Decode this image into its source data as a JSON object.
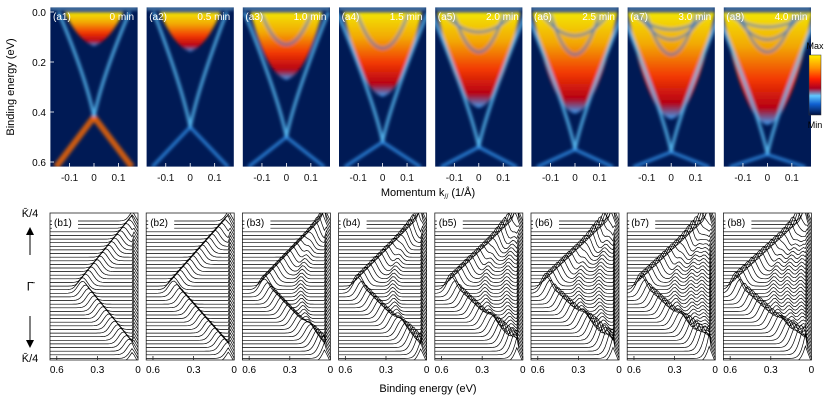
{
  "figure": {
    "top_panels": [
      {
        "label": "(a1)",
        "time": "0 min"
      },
      {
        "label": "(a2)",
        "time": "0.5 min"
      },
      {
        "label": "(a3)",
        "time": "1.0 min"
      },
      {
        "label": "(a4)",
        "time": "1.5 min"
      },
      {
        "label": "(a5)",
        "time": "2.0 min"
      },
      {
        "label": "(a6)",
        "time": "2.5 min"
      },
      {
        "label": "(a7)",
        "time": "3.0 min"
      },
      {
        "label": "(a8)",
        "time": "4.0 min"
      }
    ],
    "bottom_panels": [
      {
        "label": "(b1)"
      },
      {
        "label": "(b2)"
      },
      {
        "label": "(b3)"
      },
      {
        "label": "(b4)"
      },
      {
        "label": "(b5)"
      },
      {
        "label": "(b6)"
      },
      {
        "label": "(b7)"
      },
      {
        "label": "(b8)"
      }
    ],
    "top_y_label": "Binding energy (eV)",
    "top_y_ticks": [
      "0.0",
      "0.2",
      "0.4",
      "0.6"
    ],
    "top_x_label": "Momentum k",
    "top_x_label_sub": "//",
    "top_x_label_unit": " (1/Å)",
    "top_x_ticks": [
      "-0.1",
      "0",
      "0.1"
    ],
    "colorbar": {
      "max_label": "Max",
      "min_label": "Min"
    },
    "bottom_y_top": "K̄/4",
    "bottom_y_mid": "Γ̄",
    "bottom_y_bottom": "K̄/4",
    "bottom_x_label": "Binding energy (eV)",
    "bottom_x_ticks": [
      "0.6",
      "0.3",
      "0"
    ]
  },
  "chart_data": {
    "type": "heatmap",
    "title": "",
    "xlabel": "Momentum k// (1/Å)",
    "ylabel": "Binding energy (eV)",
    "xlim": [
      -0.18,
      0.18
    ],
    "ylim": [
      0.62,
      -0.02
    ],
    "x_ticks": [
      -0.1,
      0,
      0.1
    ],
    "y_ticks": [
      0.0,
      0.2,
      0.4,
      0.6
    ],
    "panels": [
      {
        "label": "(a1)",
        "time_min": 0.0,
        "fill": 0.25,
        "dirac_point_eV": 0.42,
        "subbands_eV": []
      },
      {
        "label": "(a2)",
        "time_min": 0.5,
        "fill": 0.3,
        "dirac_point_eV": 0.46,
        "subbands_eV": []
      },
      {
        "label": "(a3)",
        "time_min": 1.0,
        "fill": 0.55,
        "dirac_point_eV": 0.5,
        "subbands_eV": [
          0.22
        ]
      },
      {
        "label": "(a4)",
        "time_min": 1.5,
        "fill": 0.7,
        "dirac_point_eV": 0.52,
        "subbands_eV": [
          0.25
        ]
      },
      {
        "label": "(a5)",
        "time_min": 2.0,
        "fill": 0.8,
        "dirac_point_eV": 0.54,
        "subbands_eV": [
          0.12,
          0.28
        ]
      },
      {
        "label": "(a6)",
        "time_min": 2.5,
        "fill": 0.85,
        "dirac_point_eV": 0.55,
        "subbands_eV": [
          0.15,
          0.3
        ]
      },
      {
        "label": "(a7)",
        "time_min": 3.0,
        "fill": 0.9,
        "dirac_point_eV": 0.56,
        "subbands_eV": [
          0.1,
          0.18,
          0.3
        ]
      },
      {
        "label": "(a8)",
        "time_min": 4.0,
        "fill": 0.95,
        "dirac_point_eV": 0.57,
        "subbands_eV": [
          0.08,
          0.18,
          0.28
        ]
      }
    ],
    "edc_panels": {
      "type": "line",
      "xlabel": "Binding energy (eV)",
      "x_range": [
        0.65,
        0.0
      ],
      "x_ticks": [
        0.6,
        0.3,
        0
      ],
      "curves_per_panel": 40
    }
  }
}
